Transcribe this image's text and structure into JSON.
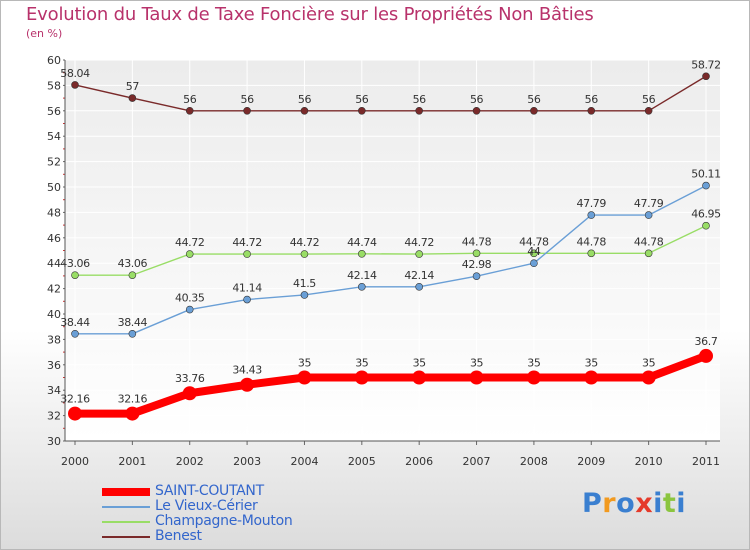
{
  "title": "Evolution du Taux de Taxe Foncière sur les Propriétés Non Bâties",
  "subtitle": "(en %)",
  "logo": {
    "letters": [
      "P",
      "r",
      "o",
      "x",
      "i",
      "t",
      "i"
    ],
    "colors": [
      "#3a7fd0",
      "#f29a1f",
      "#3a7fd0",
      "#e53a2a",
      "#3a7fd0",
      "#8bc53f",
      "#3a7fd0"
    ]
  },
  "chart_data": {
    "type": "line",
    "x": [
      "2000",
      "2001",
      "2002",
      "2003",
      "2004",
      "2005",
      "2006",
      "2007",
      "2008",
      "2009",
      "2010",
      "2011"
    ],
    "ylim": [
      30,
      60
    ],
    "yticks": [
      "30",
      "32",
      "34",
      "36",
      "38",
      "40",
      "42",
      "44",
      "46",
      "48",
      "50",
      "52",
      "54",
      "56",
      "58",
      "60"
    ],
    "grid": true,
    "series": [
      {
        "name": "SAINT-COUTANT",
        "color": "#ff0000",
        "values": [
          32.16,
          32.16,
          33.76,
          34.43,
          35,
          35,
          35,
          35,
          35,
          35,
          35,
          36.7
        ],
        "labels": [
          "32.16",
          "32.16",
          "33.76",
          "34.43",
          "35",
          "35",
          "35",
          "35",
          "35",
          "35",
          "35",
          "36.7"
        ]
      },
      {
        "name": "Le Vieux-Cérier",
        "color": "#6a9fd6",
        "values": [
          38.44,
          38.44,
          40.35,
          41.14,
          41.5,
          42.14,
          42.14,
          42.98,
          44,
          47.79,
          47.79,
          50.11
        ],
        "labels": [
          "38.44",
          "38.44",
          "40.35",
          "41.14",
          "41.5",
          "42.14",
          "42.14",
          "42.98",
          "44",
          "47.79",
          "47.79",
          "50.11"
        ]
      },
      {
        "name": "Champagne-Mouton",
        "color": "#99dd66",
        "values": [
          43.06,
          43.06,
          44.72,
          44.72,
          44.72,
          44.74,
          44.72,
          44.78,
          44.78,
          44.78,
          44.78,
          46.95
        ],
        "labels": [
          "43.06",
          "43.06",
          "44.72",
          "44.72",
          "44.72",
          "44.74",
          "44.72",
          "44.78",
          "44.78",
          "44.78",
          "44.78",
          "46.95"
        ]
      },
      {
        "name": "Benest",
        "color": "#7a2a2a",
        "values": [
          58.04,
          57,
          56,
          56,
          56,
          56,
          56,
          56,
          56,
          56,
          56,
          58.72
        ],
        "labels": [
          "58.04",
          "57",
          "56",
          "56",
          "56",
          "56",
          "56",
          "56",
          "56",
          "56",
          "56",
          "58.72"
        ]
      }
    ]
  }
}
